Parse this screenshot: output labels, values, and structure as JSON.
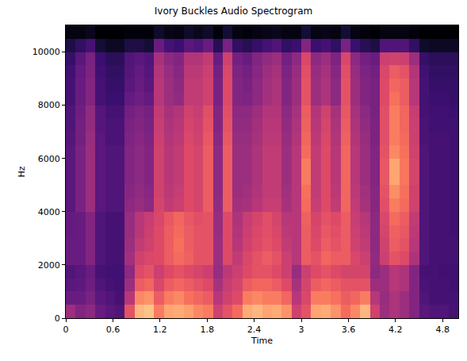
{
  "chart_data": {
    "type": "heatmap",
    "title": "Ivory Buckles Audio Spectrogram",
    "x_label": "Time",
    "y_label": "Hz",
    "xlim": [
      0,
      5
    ],
    "ylim": [
      0,
      11000
    ],
    "xticks": [
      0,
      0.6,
      1.2,
      1.8,
      2.4,
      3,
      3.6,
      4.2,
      4.8
    ],
    "yticks": [
      0,
      2000,
      4000,
      6000,
      8000,
      10000
    ],
    "grid": false,
    "zlim": [
      -80,
      0
    ],
    "x": [
      0.0625,
      0.1875,
      0.3125,
      0.4375,
      0.5625,
      0.6875,
      0.8125,
      0.9375,
      1.0625,
      1.1875,
      1.3125,
      1.4375,
      1.5625,
      1.6875,
      1.8125,
      1.9375,
      2.0625,
      2.1875,
      2.3125,
      2.4375,
      2.5625,
      2.6875,
      2.8125,
      2.9375,
      3.0625,
      3.1875,
      3.3125,
      3.4375,
      3.5625,
      3.6875,
      3.8125,
      3.9375,
      4.0625,
      4.1875,
      4.3125,
      4.4375,
      4.5625,
      4.6875,
      4.8125,
      4.9375
    ],
    "y": [
      250,
      750,
      1250,
      1750,
      2250,
      2750,
      3250,
      3750,
      4250,
      4750,
      5250,
      5750,
      6250,
      6750,
      7250,
      7750,
      8250,
      8750,
      9250,
      9750,
      10250,
      10750
    ],
    "z": [
      [
        -45,
        -50,
        -48,
        -55,
        -58,
        -60,
        -30,
        -12,
        -10,
        -22,
        -15,
        -14,
        -16,
        -20,
        -22,
        -35,
        -30,
        -25,
        -14,
        -12,
        -15,
        -14,
        -18,
        -35,
        -30,
        -15,
        -14,
        -18,
        -25,
        -20,
        -12,
        -35,
        -45,
        -42,
        -45,
        -50,
        -58,
        -60,
        -60,
        -62
      ],
      [
        -55,
        -55,
        -52,
        -58,
        -60,
        -62,
        -40,
        -20,
        -18,
        -28,
        -22,
        -20,
        -24,
        -26,
        -28,
        -40,
        -35,
        -32,
        -22,
        -20,
        -22,
        -22,
        -26,
        -40,
        -33,
        -22,
        -22,
        -24,
        -28,
        -26,
        -22,
        -40,
        -46,
        -42,
        -45,
        -50,
        -60,
        -62,
        -62,
        -62
      ],
      [
        -58,
        -57,
        -54,
        -60,
        -62,
        -63,
        -45,
        -28,
        -26,
        -33,
        -28,
        -26,
        -28,
        -30,
        -32,
        -43,
        -37,
        -34,
        -28,
        -26,
        -26,
        -28,
        -32,
        -43,
        -34,
        -28,
        -26,
        -28,
        -30,
        -30,
        -30,
        -45,
        -45,
        -40,
        -42,
        -50,
        -61,
        -62,
        -62,
        -63
      ],
      [
        -60,
        -58,
        -55,
        -62,
        -63,
        -63,
        -48,
        -32,
        -30,
        -36,
        -32,
        -30,
        -32,
        -34,
        -36,
        -46,
        -39,
        -36,
        -32,
        -30,
        -30,
        -32,
        -36,
        -46,
        -36,
        -32,
        -30,
        -32,
        -34,
        -34,
        -34,
        -48,
        -45,
        -40,
        -42,
        -50,
        -62,
        -62,
        -63,
        -63
      ],
      [
        -55,
        -55,
        -50,
        -60,
        -62,
        -62,
        -44,
        -35,
        -33,
        -32,
        -28,
        -25,
        -27,
        -30,
        -30,
        -45,
        -32,
        -38,
        -33,
        -30,
        -28,
        -30,
        -36,
        -40,
        -28,
        -30,
        -26,
        -28,
        -28,
        -33,
        -36,
        -47,
        -36,
        -30,
        -32,
        -42,
        -60,
        -62,
        -62,
        -62
      ],
      [
        -55,
        -55,
        -50,
        -60,
        -62,
        -62,
        -45,
        -38,
        -35,
        -32,
        -28,
        -24,
        -28,
        -30,
        -30,
        -45,
        -32,
        -40,
        -35,
        -32,
        -30,
        -32,
        -38,
        -40,
        -28,
        -32,
        -28,
        -30,
        -28,
        -35,
        -38,
        -48,
        -35,
        -28,
        -30,
        -40,
        -60,
        -62,
        -62,
        -62
      ],
      [
        -56,
        -55,
        -50,
        -60,
        -62,
        -62,
        -46,
        -40,
        -36,
        -32,
        -28,
        -25,
        -28,
        -30,
        -30,
        -46,
        -32,
        -41,
        -36,
        -33,
        -31,
        -33,
        -39,
        -40,
        -28,
        -33,
        -29,
        -31,
        -28,
        -36,
        -39,
        -48,
        -34,
        -27,
        -29,
        -39,
        -60,
        -62,
        -62,
        -63
      ],
      [
        -56,
        -55,
        -50,
        -60,
        -62,
        -62,
        -46,
        -40,
        -37,
        -33,
        -29,
        -26,
        -29,
        -31,
        -30,
        -46,
        -32,
        -42,
        -37,
        -34,
        -31,
        -34,
        -40,
        -40,
        -27,
        -34,
        -30,
        -32,
        -28,
        -37,
        -40,
        -48,
        -33,
        -25,
        -28,
        -38,
        -60,
        -62,
        -62,
        -63
      ],
      [
        -58,
        -52,
        -45,
        -58,
        -60,
        -60,
        -48,
        -46,
        -48,
        -34,
        -38,
        -36,
        -32,
        -34,
        -28,
        -47,
        -28,
        -44,
        -43,
        -40,
        -37,
        -37,
        -43,
        -40,
        -25,
        -37,
        -32,
        -38,
        -26,
        -38,
        -43,
        -49,
        -31,
        -22,
        -25,
        -35,
        -60,
        -62,
        -62,
        -63
      ],
      [
        -58,
        -52,
        -45,
        -58,
        -60,
        -60,
        -49,
        -47,
        -49,
        -35,
        -39,
        -37,
        -32,
        -34,
        -28,
        -48,
        -28,
        -45,
        -44,
        -41,
        -38,
        -38,
        -44,
        -40,
        -24,
        -38,
        -32,
        -39,
        -26,
        -39,
        -44,
        -49,
        -30,
        -19,
        -24,
        -35,
        -60,
        -62,
        -62,
        -63
      ],
      [
        -58,
        -52,
        -45,
        -58,
        -60,
        -60,
        -50,
        -48,
        -50,
        -35,
        -40,
        -38,
        -32,
        -34,
        -28,
        -48,
        -28,
        -45,
        -45,
        -42,
        -38,
        -38,
        -45,
        -40,
        -22,
        -38,
        -32,
        -40,
        -26,
        -40,
        -45,
        -50,
        -29,
        -15,
        -23,
        -34,
        -60,
        -62,
        -62,
        -63
      ],
      [
        -58,
        -52,
        -45,
        -58,
        -60,
        -60,
        -50,
        -48,
        -50,
        -35,
        -40,
        -38,
        -32,
        -34,
        -28,
        -48,
        -28,
        -45,
        -45,
        -42,
        -38,
        -38,
        -45,
        -40,
        -22,
        -38,
        -32,
        -40,
        -26,
        -40,
        -45,
        -50,
        -29,
        -15,
        -23,
        -34,
        -60,
        -62,
        -62,
        -63
      ],
      [
        -58,
        -52,
        -45,
        -58,
        -60,
        -60,
        -50,
        -48,
        -50,
        -35,
        -40,
        -38,
        -32,
        -34,
        -28,
        -48,
        -28,
        -45,
        -45,
        -42,
        -38,
        -38,
        -45,
        -40,
        -25,
        -38,
        -32,
        -40,
        -26,
        -40,
        -45,
        -50,
        -30,
        -20,
        -24,
        -35,
        -60,
        -62,
        -62,
        -63
      ],
      [
        -59,
        -53,
        -46,
        -58,
        -61,
        -61,
        -51,
        -49,
        -51,
        -36,
        -41,
        -39,
        -33,
        -35,
        -29,
        -49,
        -29,
        -46,
        -46,
        -43,
        -39,
        -39,
        -46,
        -41,
        -26,
        -39,
        -33,
        -41,
        -27,
        -41,
        -46,
        -51,
        -31,
        -22,
        -25,
        -36,
        -61,
        -62,
        -62,
        -63
      ],
      [
        -60,
        -53,
        -47,
        -59,
        -61,
        -61,
        -52,
        -50,
        -52,
        -37,
        -42,
        -40,
        -34,
        -36,
        -30,
        -50,
        -30,
        -47,
        -47,
        -44,
        -40,
        -40,
        -47,
        -42,
        -27,
        -40,
        -34,
        -42,
        -28,
        -42,
        -47,
        -51,
        -31,
        -22,
        -26,
        -36,
        -61,
        -63,
        -63,
        -63
      ],
      [
        -60,
        -54,
        -47,
        -59,
        -62,
        -62,
        -53,
        -51,
        -53,
        -38,
        -43,
        -41,
        -35,
        -37,
        -31,
        -50,
        -31,
        -48,
        -48,
        -45,
        -41,
        -41,
        -48,
        -43,
        -28,
        -41,
        -35,
        -43,
        -29,
        -43,
        -48,
        -52,
        -31,
        -22,
        -26,
        -37,
        -62,
        -63,
        -63,
        -64
      ],
      [
        -62,
        -55,
        -50,
        -62,
        -64,
        -64,
        -56,
        -54,
        -56,
        -40,
        -45,
        -47,
        -38,
        -38,
        -35,
        -52,
        -32,
        -50,
        -51,
        -48,
        -44,
        -42,
        -50,
        -45,
        -30,
        -45,
        -42,
        -48,
        -30,
        -45,
        -50,
        -52,
        -32,
        -24,
        -28,
        -40,
        -62,
        -64,
        -64,
        -65
      ],
      [
        -62,
        -55,
        -50,
        -62,
        -65,
        -65,
        -58,
        -55,
        -58,
        -40,
        -45,
        -48,
        -38,
        -38,
        -35,
        -52,
        -32,
        -50,
        -52,
        -48,
        -44,
        -42,
        -50,
        -45,
        -30,
        -45,
        -42,
        -48,
        -30,
        -45,
        -50,
        -52,
        -32,
        -26,
        -28,
        -40,
        -62,
        -65,
        -65,
        -65
      ],
      [
        -63,
        -56,
        -51,
        -63,
        -66,
        -66,
        -59,
        -56,
        -59,
        -41,
        -46,
        -49,
        -39,
        -39,
        -36,
        -53,
        -33,
        -51,
        -53,
        -49,
        -45,
        -43,
        -51,
        -46,
        -31,
        -46,
        -43,
        -49,
        -31,
        -46,
        -51,
        -53,
        -33,
        -28,
        -30,
        -41,
        -63,
        -66,
        -66,
        -66
      ],
      [
        -65,
        -58,
        -52,
        -64,
        -67,
        -67,
        -60,
        -58,
        -60,
        -43,
        -48,
        -50,
        -41,
        -41,
        -38,
        -55,
        -35,
        -53,
        -55,
        -50,
        -47,
        -45,
        -53,
        -48,
        -33,
        -48,
        -45,
        -51,
        -33,
        -48,
        -53,
        -55,
        -36,
        -35,
        -36,
        -45,
        -65,
        -67,
        -67,
        -67
      ],
      [
        -70,
        -66,
        -62,
        -72,
        -75,
        -75,
        -70,
        -70,
        -72,
        -55,
        -62,
        -64,
        -58,
        -60,
        -55,
        -68,
        -52,
        -66,
        -68,
        -65,
        -62,
        -60,
        -66,
        -64,
        -50,
        -64,
        -62,
        -66,
        -52,
        -64,
        -68,
        -70,
        -60,
        -60,
        -60,
        -66,
        -74,
        -75,
        -75,
        -75
      ],
      [
        -78,
        -78,
        -76,
        -80,
        -80,
        -80,
        -79,
        -79,
        -79,
        -74,
        -77,
        -78,
        -74,
        -76,
        -74,
        -79,
        -72,
        -78,
        -79,
        -78,
        -77,
        -76,
        -78,
        -78,
        -72,
        -78,
        -77,
        -78,
        -72,
        -78,
        -79,
        -80,
        -78,
        -78,
        -78,
        -79,
        -80,
        -80,
        -80,
        -80
      ]
    ]
  }
}
